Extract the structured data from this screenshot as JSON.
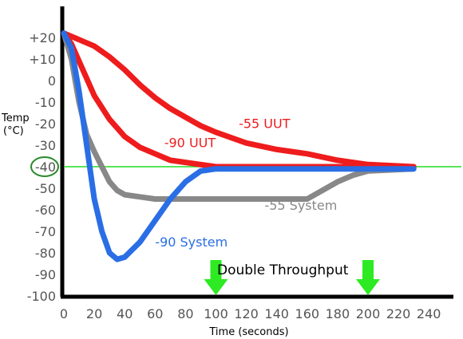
{
  "chart_data": {
    "type": "line",
    "title": "",
    "xlabel": "Time (seconds)",
    "ylabel_line1": "Temp",
    "ylabel_line2": "(°C)",
    "xlim": [
      0,
      240
    ],
    "ylim": [
      -105,
      25
    ],
    "x_ticks": [
      "0",
      "20",
      "40",
      "60",
      "80",
      "100",
      "120",
      "140",
      "160",
      "180",
      "200",
      "220",
      "240"
    ],
    "y_ticks": [
      "+20",
      "+10",
      "0",
      "-10",
      "-20",
      "-30",
      "-40",
      "-50",
      "-60",
      "-70",
      "-80",
      "-90",
      "-100"
    ],
    "highlighted_tick": "-40",
    "reference_line": {
      "y": -40,
      "color": "#22dd22"
    },
    "grid": false,
    "series": [
      {
        "name": "-55 UUT",
        "color": "#ee1c1c",
        "label_pos": [
          115,
          -22
        ],
        "points": [
          [
            0,
            22
          ],
          [
            10,
            19
          ],
          [
            20,
            16
          ],
          [
            30,
            11
          ],
          [
            40,
            5
          ],
          [
            50,
            -2
          ],
          [
            60,
            -8
          ],
          [
            70,
            -13
          ],
          [
            80,
            -17
          ],
          [
            90,
            -21
          ],
          [
            100,
            -24
          ],
          [
            120,
            -29
          ],
          [
            140,
            -32
          ],
          [
            160,
            -34
          ],
          [
            180,
            -37
          ],
          [
            200,
            -39
          ],
          [
            230,
            -40
          ]
        ]
      },
      {
        "name": "-90 UUT",
        "color": "#ee1c1c",
        "label_pos": [
          66,
          -31
        ],
        "points": [
          [
            0,
            22
          ],
          [
            5,
            17
          ],
          [
            10,
            9
          ],
          [
            15,
            1
          ],
          [
            20,
            -7
          ],
          [
            30,
            -18
          ],
          [
            40,
            -26
          ],
          [
            50,
            -31
          ],
          [
            60,
            -34
          ],
          [
            70,
            -37
          ],
          [
            80,
            -38
          ],
          [
            90,
            -39
          ],
          [
            100,
            -40
          ],
          [
            140,
            -40
          ],
          [
            180,
            -40
          ],
          [
            230,
            -40
          ]
        ]
      },
      {
        "name": "-55 System",
        "color": "#888888",
        "label_pos": [
          132,
          -60
        ],
        "points": [
          [
            0,
            22
          ],
          [
            5,
            10
          ],
          [
            10,
            -10
          ],
          [
            15,
            -25
          ],
          [
            20,
            -33
          ],
          [
            25,
            -40
          ],
          [
            30,
            -47
          ],
          [
            35,
            -51
          ],
          [
            40,
            -53
          ],
          [
            50,
            -54
          ],
          [
            60,
            -55
          ],
          [
            160,
            -55
          ],
          [
            170,
            -51
          ],
          [
            180,
            -47
          ],
          [
            190,
            -44
          ],
          [
            200,
            -42
          ],
          [
            230,
            -41
          ]
        ]
      },
      {
        "name": "-90 System",
        "color": "#2a6ee5",
        "label_pos": [
          60,
          -77
        ],
        "points": [
          [
            0,
            22
          ],
          [
            5,
            15
          ],
          [
            10,
            -5
          ],
          [
            15,
            -30
          ],
          [
            20,
            -55
          ],
          [
            25,
            -70
          ],
          [
            30,
            -80
          ],
          [
            35,
            -83
          ],
          [
            40,
            -82
          ],
          [
            50,
            -75
          ],
          [
            60,
            -65
          ],
          [
            70,
            -55
          ],
          [
            80,
            -47
          ],
          [
            90,
            -42
          ],
          [
            100,
            -41
          ],
          [
            120,
            -41
          ],
          [
            230,
            -41
          ]
        ]
      }
    ],
    "annotations": {
      "text": "Double Throughput",
      "arrow_color": "#2dea22",
      "arrow_x": [
        100,
        200
      ]
    }
  }
}
